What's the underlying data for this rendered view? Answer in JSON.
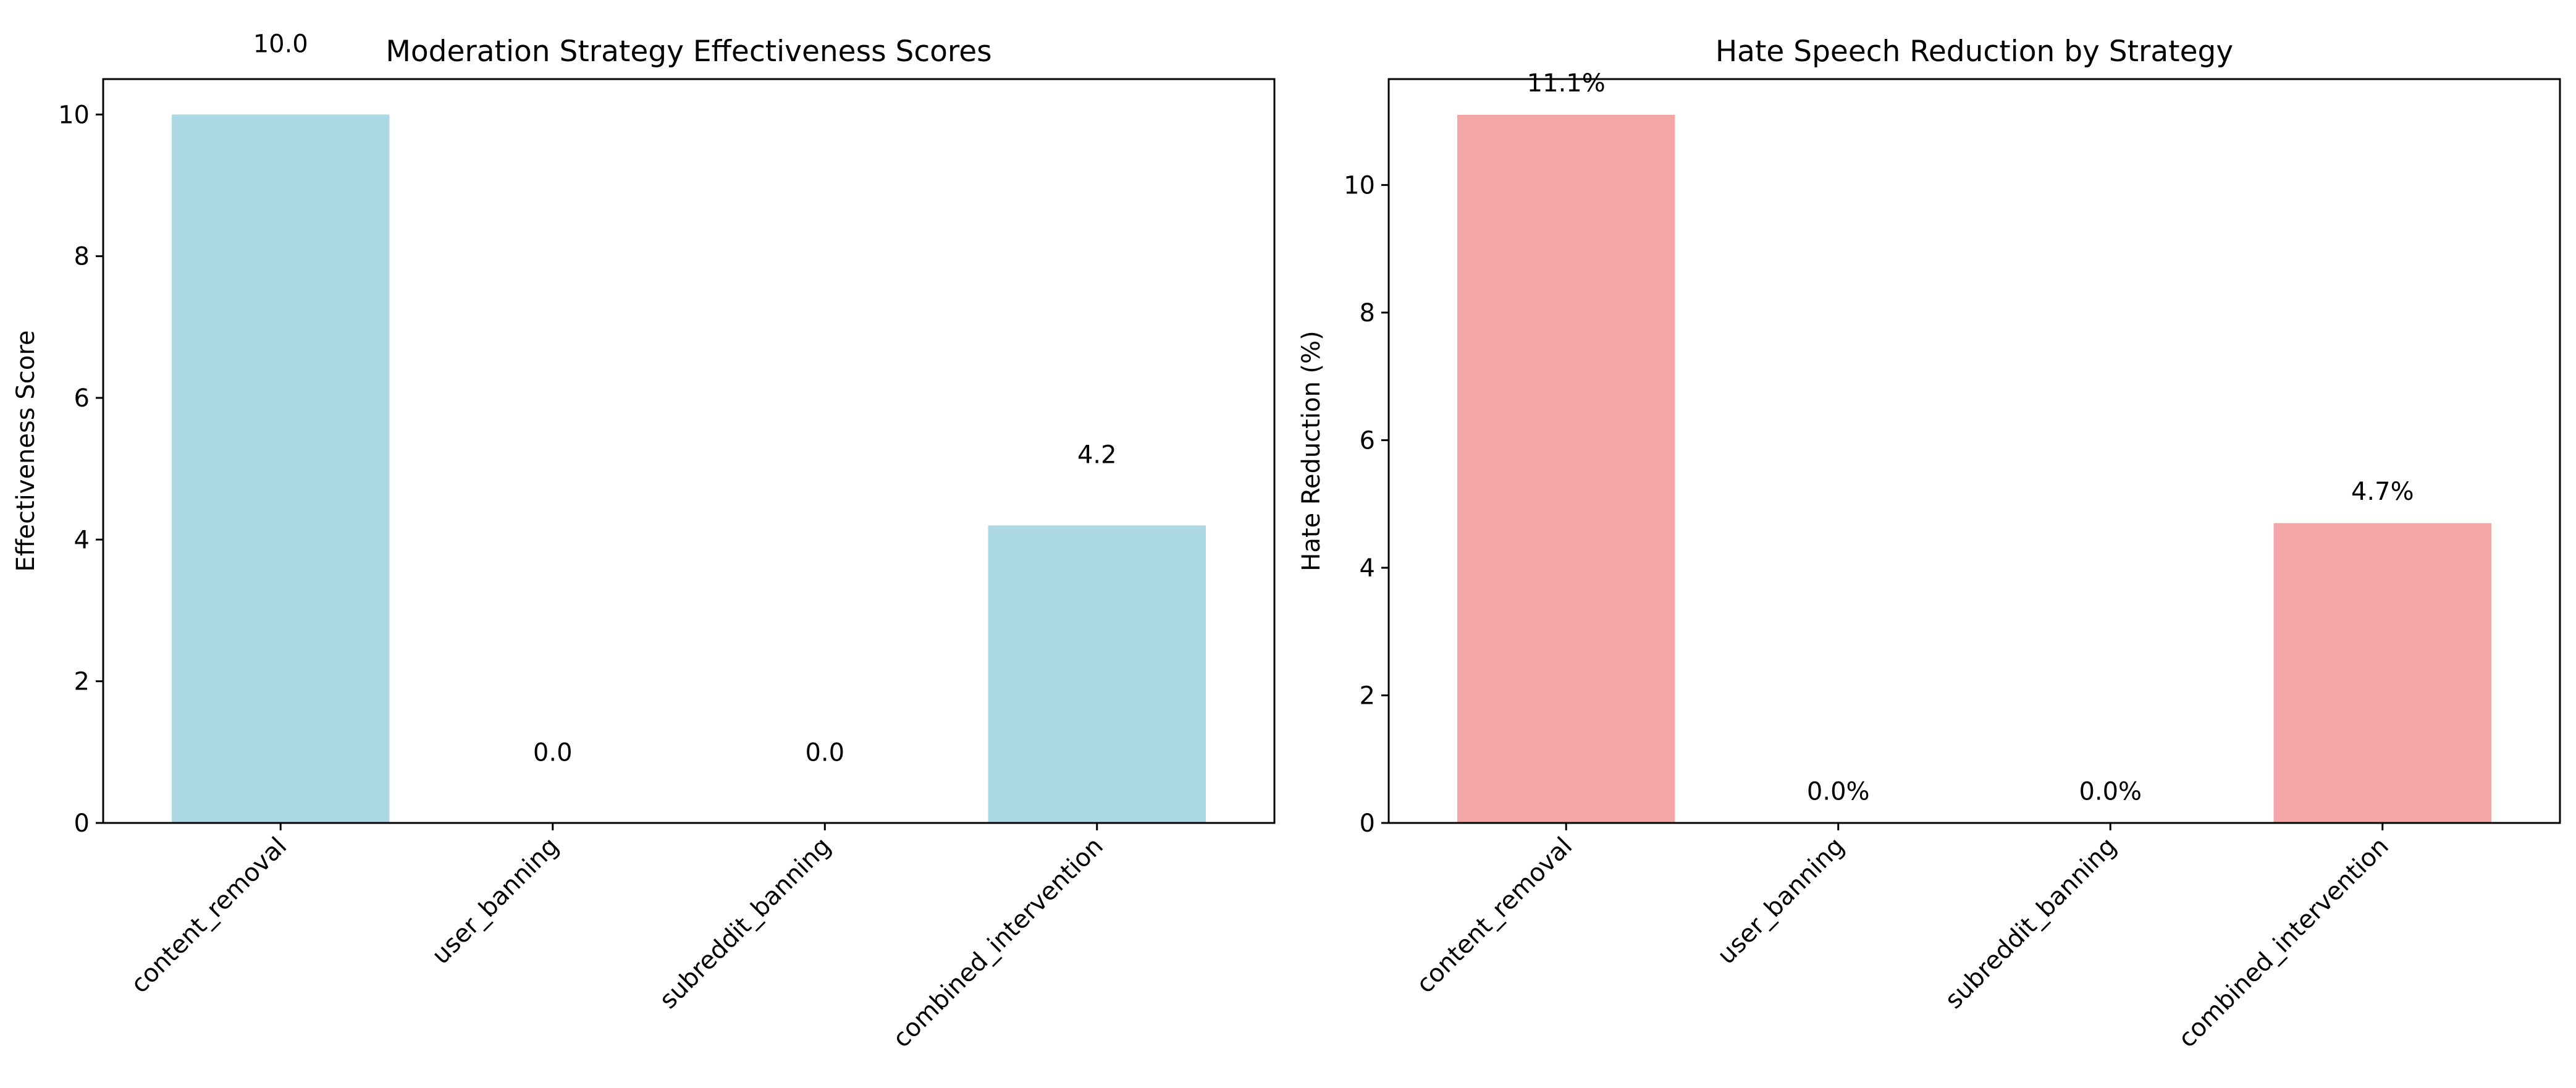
{
  "chart_data": [
    {
      "type": "bar",
      "title": "Moderation Strategy Effectiveness Scores",
      "xlabel": "",
      "ylabel": "Effectiveness Score",
      "categories": [
        "content_removal",
        "user_banning",
        "subreddit_banning",
        "combined_intervention"
      ],
      "values": [
        10.0,
        0.0,
        0.0,
        4.2
      ],
      "value_labels": [
        "10.0",
        "0.0",
        "0.0",
        "4.2"
      ],
      "ylim": [
        0,
        10.5
      ],
      "yticks": [
        0,
        2,
        4,
        6,
        8,
        10
      ],
      "color": "#add8e6",
      "grid": false,
      "legend": "none"
    },
    {
      "type": "bar",
      "title": "Hate Speech Reduction by Strategy",
      "xlabel": "",
      "ylabel": "Hate Reduction (%)",
      "categories": [
        "content_removal",
        "user_banning",
        "subreddit_banning",
        "combined_intervention"
      ],
      "values": [
        11.1,
        0.0,
        0.0,
        4.7
      ],
      "value_labels": [
        "11.1%",
        "0.0%",
        "0.0%",
        "4.7%"
      ],
      "ylim": [
        0,
        11.66
      ],
      "yticks": [
        0,
        2,
        4,
        6,
        8,
        10
      ],
      "color": "#f4a6a6",
      "grid": false,
      "legend": "none"
    }
  ]
}
